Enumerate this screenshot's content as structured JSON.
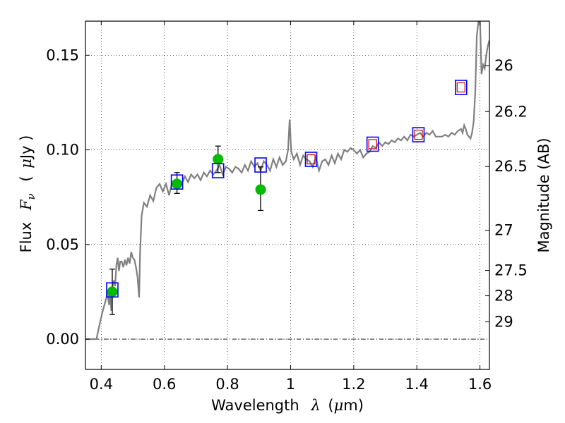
{
  "chart_data": {
    "type": "line",
    "xlabel_prefix": "Wavelength",
    "xlabel_symbol": "λ",
    "xlabel_unit_open": "(",
    "xlabel_unit_mu": "μ",
    "xlabel_unit_rest": "m)",
    "ylabel_prefix": "Flux",
    "ylabel_symbol": "F",
    "ylabel_sub": "ν",
    "ylabel_unit_open": "(",
    "ylabel_unit_mu": "μ",
    "ylabel_unit_rest": "Jy )",
    "y2label": "Magnitude (AB)",
    "xlim": [
      0.35,
      1.63
    ],
    "ylim": [
      -0.016,
      0.168
    ],
    "grid": true,
    "x_ticks": [
      {
        "value": 0.4,
        "label": "0.4"
      },
      {
        "value": 0.6,
        "label": "0.6"
      },
      {
        "value": 0.8,
        "label": "0.8"
      },
      {
        "value": 1.0,
        "label": "1"
      },
      {
        "value": 1.2,
        "label": "1.2"
      },
      {
        "value": 1.4,
        "label": "1.4"
      },
      {
        "value": 1.6,
        "label": "1.6"
      }
    ],
    "y_ticks": [
      {
        "value": 0.0,
        "label": "0.00"
      },
      {
        "value": 0.05,
        "label": "0.05"
      },
      {
        "value": 0.1,
        "label": "0.10"
      },
      {
        "value": 0.15,
        "label": "0.15"
      }
    ],
    "mag_ticks": [
      {
        "value": 26,
        "label": "26"
      },
      {
        "value": 26.2,
        "label": "26.2"
      },
      {
        "value": 26.5,
        "label": "26.5"
      },
      {
        "value": 27,
        "label": "27"
      },
      {
        "value": 27.5,
        "label": "27.5"
      },
      {
        "value": 28,
        "label": "28"
      },
      {
        "value": 29,
        "label": "29"
      }
    ],
    "mag_zero_point": 23.9,
    "series": [
      {
        "kind": "model_spectrum",
        "color": "#808080",
        "points": [
          [
            0.35,
            0.0
          ],
          [
            0.385,
            0.0
          ],
          [
            0.395,
            0.008
          ],
          [
            0.405,
            0.015
          ],
          [
            0.415,
            0.021
          ],
          [
            0.42,
            0.024
          ],
          [
            0.425,
            0.018
          ],
          [
            0.428,
            0.025
          ],
          [
            0.432,
            0.015
          ],
          [
            0.436,
            0.028
          ],
          [
            0.44,
            0.031
          ],
          [
            0.444,
            0.028
          ],
          [
            0.448,
            0.039
          ],
          [
            0.452,
            0.043
          ],
          [
            0.456,
            0.036
          ],
          [
            0.46,
            0.041
          ],
          [
            0.465,
            0.041
          ],
          [
            0.47,
            0.038
          ],
          [
            0.475,
            0.042
          ],
          [
            0.48,
            0.039
          ],
          [
            0.485,
            0.043
          ],
          [
            0.49,
            0.04
          ],
          [
            0.495,
            0.046
          ],
          [
            0.5,
            0.043
          ],
          [
            0.505,
            0.042
          ],
          [
            0.51,
            0.038
          ],
          [
            0.515,
            0.033
          ],
          [
            0.52,
            0.022
          ],
          [
            0.523,
            0.045
          ],
          [
            0.528,
            0.065
          ],
          [
            0.535,
            0.072
          ],
          [
            0.545,
            0.07
          ],
          [
            0.555,
            0.076
          ],
          [
            0.565,
            0.073
          ],
          [
            0.575,
            0.08
          ],
          [
            0.585,
            0.082
          ],
          [
            0.595,
            0.078
          ],
          [
            0.605,
            0.082
          ],
          [
            0.615,
            0.076
          ],
          [
            0.625,
            0.083
          ],
          [
            0.635,
            0.081
          ],
          [
            0.645,
            0.084
          ],
          [
            0.655,
            0.082
          ],
          [
            0.665,
            0.086
          ],
          [
            0.675,
            0.083
          ],
          [
            0.685,
            0.087
          ],
          [
            0.695,
            0.085
          ],
          [
            0.705,
            0.087
          ],
          [
            0.715,
            0.084
          ],
          [
            0.725,
            0.088
          ],
          [
            0.735,
            0.086
          ],
          [
            0.745,
            0.089
          ],
          [
            0.755,
            0.087
          ],
          [
            0.765,
            0.089
          ],
          [
            0.775,
            0.092
          ],
          [
            0.785,
            0.087
          ],
          [
            0.795,
            0.091
          ],
          [
            0.805,
            0.09
          ],
          [
            0.815,
            0.088
          ],
          [
            0.825,
            0.091
          ],
          [
            0.835,
            0.09
          ],
          [
            0.845,
            0.088
          ],
          [
            0.855,
            0.092
          ],
          [
            0.865,
            0.089
          ],
          [
            0.875,
            0.094
          ],
          [
            0.885,
            0.091
          ],
          [
            0.895,
            0.093
          ],
          [
            0.905,
            0.089
          ],
          [
            0.915,
            0.094
          ],
          [
            0.925,
            0.092
          ],
          [
            0.935,
            0.089
          ],
          [
            0.945,
            0.095
          ],
          [
            0.955,
            0.091
          ],
          [
            0.965,
            0.096
          ],
          [
            0.975,
            0.092
          ],
          [
            0.985,
            0.094
          ],
          [
            0.992,
            0.1
          ],
          [
            0.997,
            0.116
          ],
          [
            1.002,
            0.099
          ],
          [
            1.01,
            0.095
          ],
          [
            1.02,
            0.098
          ],
          [
            1.03,
            0.092
          ],
          [
            1.04,
            0.097
          ],
          [
            1.05,
            0.095
          ],
          [
            1.06,
            0.094
          ],
          [
            1.07,
            0.091
          ],
          [
            1.08,
            0.096
          ],
          [
            1.09,
            0.089
          ],
          [
            1.1,
            0.094
          ],
          [
            1.11,
            0.095
          ],
          [
            1.12,
            0.092
          ],
          [
            1.13,
            0.097
          ],
          [
            1.14,
            0.093
          ],
          [
            1.15,
            0.098
          ],
          [
            1.16,
            0.095
          ],
          [
            1.17,
            0.1
          ],
          [
            1.18,
            0.099
          ],
          [
            1.19,
            0.101
          ],
          [
            1.2,
            0.1
          ],
          [
            1.21,
            0.098
          ],
          [
            1.22,
            0.1
          ],
          [
            1.23,
            0.096
          ],
          [
            1.24,
            0.098
          ],
          [
            1.25,
            0.099
          ],
          [
            1.26,
            0.102
          ],
          [
            1.27,
            0.101
          ],
          [
            1.28,
            0.104
          ],
          [
            1.29,
            0.102
          ],
          [
            1.3,
            0.104
          ],
          [
            1.31,
            0.103
          ],
          [
            1.32,
            0.105
          ],
          [
            1.33,
            0.104
          ],
          [
            1.34,
            0.106
          ],
          [
            1.35,
            0.105
          ],
          [
            1.36,
            0.107
          ],
          [
            1.37,
            0.105
          ],
          [
            1.38,
            0.108
          ],
          [
            1.39,
            0.107
          ],
          [
            1.4,
            0.108
          ],
          [
            1.41,
            0.109
          ],
          [
            1.42,
            0.107
          ],
          [
            1.43,
            0.109
          ],
          [
            1.44,
            0.108
          ],
          [
            1.45,
            0.11
          ],
          [
            1.46,
            0.107
          ],
          [
            1.47,
            0.107
          ],
          [
            1.48,
            0.107
          ],
          [
            1.49,
            0.108
          ],
          [
            1.5,
            0.107
          ],
          [
            1.51,
            0.109
          ],
          [
            1.52,
            0.108
          ],
          [
            1.53,
            0.11
          ],
          [
            1.54,
            0.111
          ],
          [
            1.545,
            0.109
          ],
          [
            1.55,
            0.113
          ],
          [
            1.555,
            0.111
          ],
          [
            1.56,
            0.108
          ],
          [
            1.565,
            0.107
          ],
          [
            1.57,
            0.106
          ],
          [
            1.575,
            0.109
          ],
          [
            1.58,
            0.115
          ],
          [
            1.585,
            0.13
          ],
          [
            1.59,
            0.16
          ],
          [
            1.595,
            0.168
          ]
        ]
      },
      {
        "kind": "model_spectrum_tail",
        "color": "#808080",
        "points": [
          [
            1.6,
            0.168
          ],
          [
            1.602,
            0.158
          ],
          [
            1.605,
            0.14
          ],
          [
            1.61,
            0.145
          ],
          [
            1.615,
            0.143
          ],
          [
            1.62,
            0.15
          ],
          [
            1.625,
            0.155
          ],
          [
            1.63,
            0.158
          ]
        ]
      }
    ],
    "model_photometry": {
      "marker": "open-square",
      "color": "#0000ff",
      "points": [
        [
          0.435,
          0.026
        ],
        [
          0.64,
          0.083
        ],
        [
          0.77,
          0.089
        ],
        [
          0.905,
          0.092
        ],
        [
          1.065,
          0.095
        ],
        [
          1.26,
          0.103
        ],
        [
          1.405,
          0.108
        ],
        [
          1.54,
          0.133
        ]
      ]
    },
    "upper_limits": {
      "marker": "open-square",
      "color": "#cc0000",
      "points": [
        [
          1.065,
          0.095
        ],
        [
          1.26,
          0.103
        ],
        [
          1.405,
          0.108
        ],
        [
          1.54,
          0.133
        ]
      ]
    },
    "observed": {
      "marker": "filled-circle",
      "color": "#00bb00",
      "points": [
        {
          "x": 0.435,
          "y": 0.025,
          "err_low": 0.012,
          "err_high": 0.012
        },
        {
          "x": 0.64,
          "y": 0.082,
          "err_low": 0.005,
          "err_high": 0.006
        },
        {
          "x": 0.77,
          "y": 0.095,
          "err_low": 0.007,
          "err_high": 0.007
        },
        {
          "x": 0.905,
          "y": 0.079,
          "err_low": 0.011,
          "err_high": 0.012
        }
      ]
    }
  }
}
